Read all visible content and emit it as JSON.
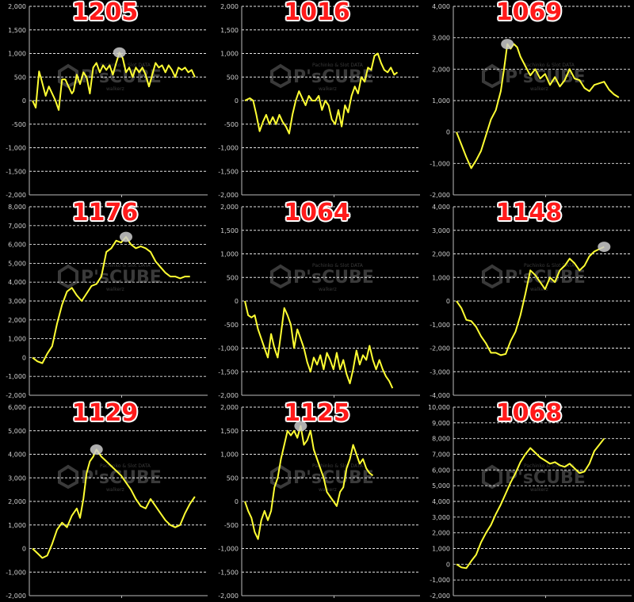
{
  "colors": {
    "background": "#000000",
    "line": "#ffff33",
    "grid": "#ffffff",
    "axis": "#bbbbbb",
    "title": "#ff1a1a",
    "marker": "#cccccc"
  },
  "watermark": {
    "text": "P'sCUBE",
    "sub_top": "Pachinko & Slot DATA",
    "sub_bottom": "walkerz"
  },
  "chart_data": [
    {
      "type": "line",
      "title": "1205",
      "ylim": [
        -2000,
        2000
      ],
      "yticks": [
        "2,000",
        "1,500",
        "1,000",
        "500",
        "0",
        "-500",
        "-1,000",
        "-1,500",
        "-2,000"
      ],
      "ytick_values": [
        2000,
        1500,
        1000,
        500,
        0,
        -500,
        -1000,
        -1500,
        -2000
      ],
      "grid": "horizontal dashed",
      "peak_marker": true,
      "series": [
        {
          "x": [
            0,
            2,
            4,
            5,
            8,
            10,
            12,
            14,
            16,
            18,
            20,
            22,
            24,
            25,
            27,
            29,
            31,
            33,
            35,
            37,
            39,
            41,
            43,
            45,
            47,
            49,
            51,
            53,
            55,
            57,
            59,
            61,
            63,
            65,
            67,
            69,
            71,
            73,
            75,
            77,
            79,
            81,
            83,
            85,
            87,
            89,
            91,
            93,
            95,
            97,
            99
          ],
          "y": [
            0,
            -150,
            620,
            500,
            100,
            300,
            150,
            0,
            -200,
            450,
            450,
            300,
            150,
            200,
            550,
            350,
            600,
            500,
            150,
            700,
            800,
            600,
            750,
            650,
            750,
            550,
            800,
            1020,
            900,
            600,
            700,
            500,
            700,
            600,
            700,
            550,
            300,
            550,
            800,
            700,
            750,
            600,
            750,
            650,
            500,
            700,
            650,
            700,
            600,
            650,
            500
          ]
        }
      ]
    },
    {
      "type": "line",
      "title": "1016",
      "ylim": [
        -2000,
        2000
      ],
      "yticks": [
        "2,000",
        "1,500",
        "1,000",
        "500",
        "0",
        "-500",
        "-1,000",
        "-1,500",
        "-2,000"
      ],
      "ytick_values": [
        2000,
        1500,
        1000,
        500,
        0,
        -500,
        -1000,
        -1500,
        -2000
      ],
      "grid": "horizontal dashed",
      "peak_marker": false,
      "series": [
        {
          "x": [
            0,
            3,
            5,
            7,
            9,
            11,
            13,
            15,
            17,
            19,
            21,
            23,
            25,
            27,
            29,
            31,
            33,
            35,
            37,
            39,
            41,
            43,
            45,
            47,
            49,
            51,
            53,
            55,
            57,
            59,
            61,
            63,
            65,
            67,
            69,
            71,
            73,
            75,
            77,
            79,
            81,
            83,
            85,
            87,
            89,
            91,
            93
          ],
          "y": [
            0,
            50,
            0,
            -300,
            -650,
            -450,
            -300,
            -500,
            -350,
            -500,
            -300,
            -450,
            -550,
            -700,
            -300,
            0,
            200,
            50,
            -100,
            100,
            0,
            0,
            100,
            -200,
            0,
            -100,
            -400,
            -500,
            -200,
            -550,
            -100,
            -250,
            100,
            300,
            150,
            500,
            400,
            700,
            650,
            950,
            1000,
            800,
            650,
            600,
            700,
            550,
            600
          ]
        }
      ]
    },
    {
      "type": "line",
      "title": "1069",
      "ylim": [
        -2000,
        4000
      ],
      "yticks": [
        "4,000",
        "3,000",
        "2,000",
        "1,000",
        "0",
        "-1,000",
        "-2,000"
      ],
      "ytick_values": [
        4000,
        3000,
        2000,
        1000,
        0,
        -1000,
        -2000
      ],
      "grid": "horizontal dashed",
      "peak_marker": true,
      "series": [
        {
          "x": [
            0,
            3,
            6,
            9,
            12,
            15,
            18,
            21,
            24,
            27,
            29,
            31,
            33,
            35,
            37,
            39,
            42,
            45,
            48,
            51,
            54,
            57,
            60,
            63,
            66,
            69,
            72,
            75,
            78,
            81,
            84,
            87,
            90,
            93,
            96,
            99
          ],
          "y": [
            0,
            -400,
            -800,
            -1150,
            -900,
            -600,
            -100,
            400,
            700,
            1300,
            2000,
            2800,
            2650,
            2800,
            2700,
            2400,
            2100,
            1800,
            2000,
            1700,
            1850,
            1500,
            1750,
            1450,
            1650,
            2000,
            1700,
            1650,
            1400,
            1300,
            1500,
            1550,
            1600,
            1350,
            1200,
            1100
          ]
        }
      ]
    },
    {
      "type": "line",
      "title": "1176",
      "ylim": [
        -2000,
        8000
      ],
      "yticks": [
        "8,000",
        "7,000",
        "6,000",
        "5,000",
        "4,000",
        "3,000",
        "2,000",
        "1,000",
        "0",
        "-1,000",
        "-2,000"
      ],
      "ytick_values": [
        8000,
        7000,
        6000,
        5000,
        4000,
        3000,
        2000,
        1000,
        0,
        -1000,
        -2000
      ],
      "grid": "horizontal dashed",
      "peak_marker": true,
      "series": [
        {
          "x": [
            0,
            3,
            6,
            9,
            12,
            15,
            18,
            21,
            24,
            27,
            30,
            33,
            36,
            39,
            42,
            45,
            48,
            51,
            54,
            57,
            60,
            63,
            66,
            69,
            72,
            75,
            78,
            81,
            84,
            87,
            90,
            93,
            96
          ],
          "y": [
            0,
            -200,
            -300,
            200,
            600,
            1800,
            2800,
            3500,
            3700,
            3300,
            3000,
            3400,
            3800,
            3900,
            4300,
            5600,
            5800,
            6200,
            6100,
            6400,
            6000,
            5800,
            5900,
            5800,
            5600,
            5100,
            4800,
            4500,
            4300,
            4300,
            4200,
            4300,
            4300
          ]
        }
      ]
    },
    {
      "type": "line",
      "title": "1064",
      "ylim": [
        -2000,
        2000
      ],
      "yticks": [
        "2,000",
        "1,500",
        "1,000",
        "500",
        "0",
        "-500",
        "-1,000",
        "-1,500",
        "-2,000"
      ],
      "ytick_values": [
        2000,
        1500,
        1000,
        500,
        0,
        -500,
        -1000,
        -1500,
        -2000
      ],
      "grid": "horizontal dashed",
      "peak_marker": false,
      "series": [
        {
          "x": [
            0,
            2,
            4,
            6,
            8,
            10,
            12,
            14,
            16,
            18,
            20,
            22,
            24,
            26,
            28,
            30,
            32,
            34,
            36,
            38,
            40,
            42,
            44,
            46,
            48,
            50,
            52,
            54,
            56,
            58,
            60,
            62,
            64,
            66,
            68,
            70,
            72,
            74,
            76,
            78,
            80,
            82,
            84,
            86,
            88,
            90
          ],
          "y": [
            0,
            -300,
            -350,
            -300,
            -600,
            -800,
            -1000,
            -1200,
            -700,
            -1000,
            -1200,
            -700,
            -150,
            -300,
            -500,
            -1000,
            -600,
            -800,
            -1000,
            -1300,
            -1500,
            -1200,
            -1350,
            -1150,
            -1450,
            -1100,
            -1250,
            -1450,
            -1100,
            -1450,
            -1250,
            -1550,
            -1750,
            -1450,
            -1050,
            -1350,
            -1150,
            -1250,
            -950,
            -1250,
            -1450,
            -1250,
            -1450,
            -1600,
            -1700,
            -1850
          ]
        }
      ]
    },
    {
      "type": "line",
      "title": "1148",
      "ylim": [
        -4000,
        4000
      ],
      "yticks": [
        "4,000",
        "3,000",
        "2,000",
        "1,000",
        "0",
        "-1,000",
        "-2,000",
        "-3,000",
        "-4,000"
      ],
      "ytick_values": [
        4000,
        3000,
        2000,
        1000,
        0,
        -1000,
        -2000,
        -3000,
        -4000
      ],
      "grid": "horizontal dashed",
      "peak_marker": true,
      "series": [
        {
          "x": [
            0,
            3,
            6,
            9,
            12,
            15,
            18,
            21,
            24,
            27,
            30,
            33,
            36,
            39,
            42,
            45,
            48,
            51,
            54,
            57,
            60,
            63,
            66,
            69,
            72,
            75,
            78,
            81,
            84,
            87,
            90
          ],
          "y": [
            0,
            -300,
            -800,
            -850,
            -1100,
            -1500,
            -1800,
            -2200,
            -2200,
            -2300,
            -2250,
            -1700,
            -1300,
            -600,
            300,
            1300,
            1100,
            800,
            500,
            1000,
            800,
            1300,
            1500,
            1800,
            1600,
            1300,
            1500,
            1900,
            2100,
            2200,
            2300
          ]
        }
      ]
    },
    {
      "type": "line",
      "title": "1129",
      "ylim": [
        -2000,
        6000
      ],
      "yticks": [
        "6,000",
        "5,000",
        "4,000",
        "3,000",
        "2,000",
        "1,000",
        "0",
        "-1,000",
        "-2,000"
      ],
      "ytick_values": [
        6000,
        5000,
        4000,
        3000,
        2000,
        1000,
        0,
        -1000,
        -2000
      ],
      "grid": "horizontal dashed",
      "peak_marker": true,
      "series": [
        {
          "x": [
            0,
            3,
            6,
            9,
            12,
            15,
            18,
            21,
            24,
            27,
            29,
            31,
            33,
            35,
            37,
            39,
            42,
            45,
            48,
            51,
            54,
            57,
            60,
            63,
            66,
            69,
            72,
            75,
            78,
            81,
            84,
            87,
            90,
            93,
            96,
            99
          ],
          "y": [
            0,
            -200,
            -400,
            -300,
            200,
            800,
            1100,
            900,
            1400,
            1700,
            1300,
            2100,
            3200,
            3700,
            3900,
            4200,
            3900,
            3700,
            3500,
            3300,
            3100,
            2800,
            2500,
            2100,
            1800,
            1700,
            2100,
            1800,
            1500,
            1200,
            1000,
            900,
            1000,
            1500,
            1900,
            2200
          ]
        }
      ]
    },
    {
      "type": "line",
      "title": "1125",
      "ylim": [
        -2000,
        2000
      ],
      "yticks": [
        "2,000",
        "1,500",
        "1,000",
        "500",
        "0",
        "-500",
        "-1,000",
        "-1,500",
        "-2,000"
      ],
      "ytick_values": [
        2000,
        1500,
        1000,
        500,
        0,
        -500,
        -1000,
        -1500,
        -2000
      ],
      "grid": "horizontal dashed",
      "peak_marker": true,
      "series": [
        {
          "x": [
            0,
            2,
            4,
            6,
            8,
            10,
            12,
            14,
            16,
            18,
            20,
            22,
            24,
            26,
            28,
            30,
            32,
            34,
            36,
            38,
            40,
            42,
            44,
            46,
            48,
            50,
            52,
            54,
            56,
            58,
            60,
            62,
            64,
            66,
            68,
            70,
            72,
            74,
            76,
            78
          ],
          "y": [
            0,
            -200,
            -350,
            -650,
            -800,
            -400,
            -200,
            -400,
            -200,
            300,
            500,
            900,
            1200,
            1500,
            1400,
            1500,
            1350,
            1600,
            1200,
            1300,
            1500,
            1100,
            900,
            700,
            500,
            200,
            100,
            0,
            -100,
            200,
            300,
            700,
            900,
            1200,
            1000,
            800,
            900,
            700,
            600,
            550
          ]
        }
      ]
    },
    {
      "type": "line",
      "title": "1068",
      "ylim": [
        -2000,
        10000
      ],
      "yticks": [
        "10,000",
        "9,000",
        "8,000",
        "7,000",
        "6,000",
        "5,000",
        "4,000",
        "3,000",
        "2,000",
        "1,000",
        "0",
        "-1,000",
        "-2,000"
      ],
      "ytick_values": [
        10000,
        9000,
        8000,
        7000,
        6000,
        5000,
        4000,
        3000,
        2000,
        1000,
        0,
        -1000,
        -2000
      ],
      "grid": "horizontal dashed",
      "peak_marker": false,
      "series": [
        {
          "x": [
            0,
            3,
            6,
            9,
            12,
            15,
            18,
            21,
            24,
            27,
            30,
            33,
            36,
            39,
            42,
            45,
            48,
            51,
            54,
            57,
            60,
            63,
            66,
            69,
            72,
            75,
            78,
            81,
            84,
            87,
            90
          ],
          "y": [
            0,
            -200,
            -250,
            200,
            600,
            1400,
            2000,
            2500,
            3200,
            3800,
            4500,
            5200,
            5800,
            6500,
            7000,
            7400,
            7100,
            6800,
            6600,
            6400,
            6500,
            6300,
            6200,
            6400,
            6100,
            5800,
            5900,
            6400,
            7200,
            7600,
            8000
          ]
        }
      ]
    }
  ]
}
